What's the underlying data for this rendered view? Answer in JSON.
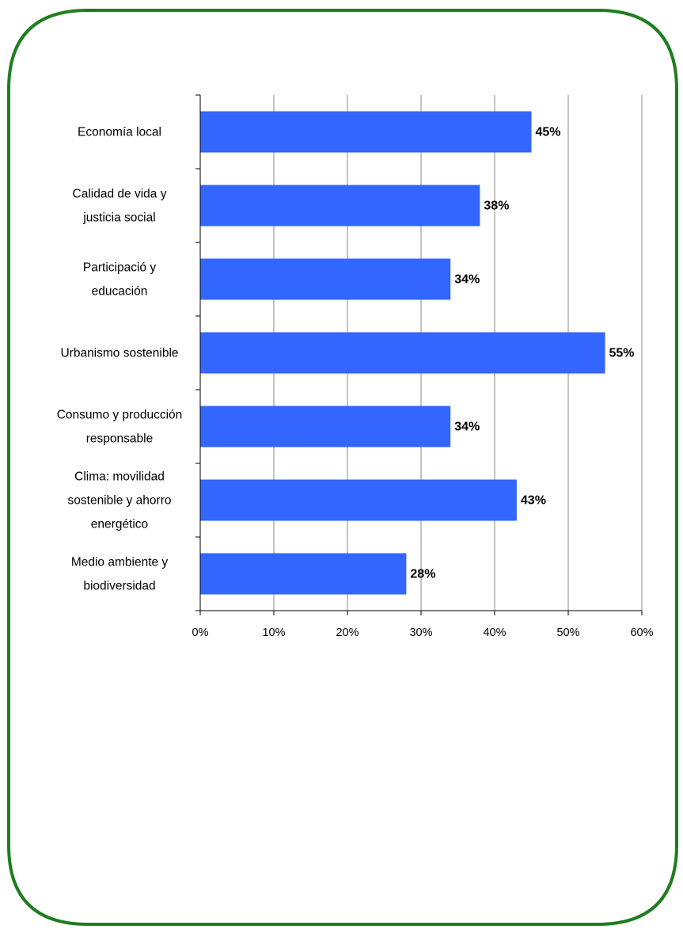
{
  "colors": {
    "frame": "#1e7e1e",
    "bar": "#3366ff",
    "grid": "#888888",
    "axis": "#000000"
  },
  "chart_data": {
    "type": "bar",
    "orientation": "horizontal",
    "categories": [
      "Economía local",
      "Calidad de vida y justicia social",
      "Participació y educación",
      "Urbanismo sostenible",
      "Consumo y producción responsable",
      "Clima: movilidad sostenible y ahorro energético",
      "Medio ambiente y biodiversidad"
    ],
    "category_lines": [
      [
        "Economía local"
      ],
      [
        "Calidad de vida y",
        "justicia social"
      ],
      [
        "Participació y",
        "educación"
      ],
      [
        "Urbanismo sostenible"
      ],
      [
        "Consumo y producción",
        "responsable"
      ],
      [
        "Clima: movilidad",
        "sostenible y ahorro",
        "energético"
      ],
      [
        "Medio ambiente y",
        "biodiversidad"
      ]
    ],
    "values": [
      45,
      38,
      34,
      55,
      34,
      43,
      28
    ],
    "value_labels": [
      "45%",
      "38%",
      "34%",
      "55%",
      "34%",
      "43%",
      "28%"
    ],
    "xlim": [
      0,
      60
    ],
    "xticks": [
      0,
      10,
      20,
      30,
      40,
      50,
      60
    ],
    "xtick_labels": [
      "0%",
      "10%",
      "20%",
      "30%",
      "40%",
      "50%",
      "60%"
    ],
    "grid": true,
    "title": "",
    "xlabel": "",
    "ylabel": ""
  }
}
